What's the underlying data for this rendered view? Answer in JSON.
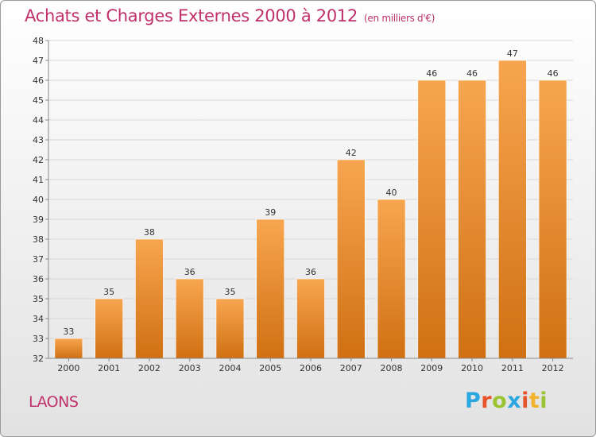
{
  "title": "Achats et Charges Externes 2000 à 2012",
  "subtitle": "(en milliers d'€)",
  "commune": "LAONS",
  "logo": {
    "text": "Proxiti",
    "letters": [
      "P",
      "r",
      "o",
      "x",
      "i",
      "t",
      "i"
    ],
    "colors": [
      "#2aa6e0",
      "#e8522a",
      "#9ac432",
      "#2aa6e0",
      "#e8522a",
      "#f2b32b",
      "#9ac432"
    ]
  },
  "colors": {
    "title": "#c0306a",
    "bar_light": "#f7a650",
    "bar_dark": "#d07012",
    "axis": "#888888",
    "grid": "#d8d8d8"
  },
  "chart_data": {
    "type": "bar",
    "title": "Achats et Charges Externes 2000 à 2012",
    "subtitle": "(en milliers d'€)",
    "xlabel": "",
    "ylabel": "",
    "categories": [
      "2000",
      "2001",
      "2002",
      "2003",
      "2004",
      "2005",
      "2006",
      "2007",
      "2008",
      "2009",
      "2010",
      "2011",
      "2012"
    ],
    "values": [
      33,
      35,
      38,
      36,
      35,
      39,
      36,
      42,
      40,
      46,
      46,
      47,
      46
    ],
    "ylim": [
      32,
      48
    ],
    "yticks": [
      32,
      33,
      34,
      35,
      36,
      37,
      38,
      39,
      40,
      41,
      42,
      43,
      44,
      45,
      46,
      47,
      48
    ],
    "grid": true,
    "data_labels": true
  }
}
